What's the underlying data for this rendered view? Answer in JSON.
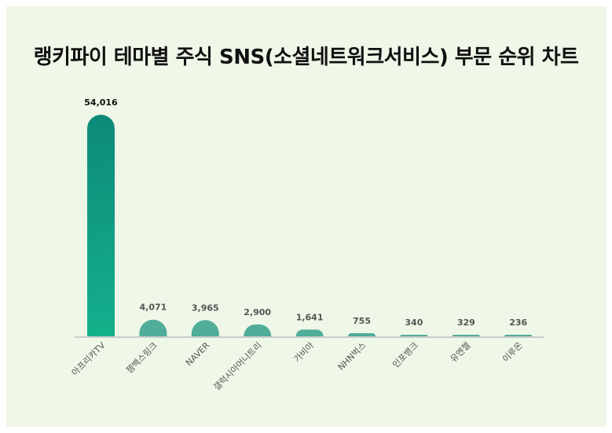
{
  "colors": {
    "background": "#eff7e8",
    "bar_top": "#0d8a78",
    "bar_bottom": "#15b08c",
    "bar_small": "#4fad99",
    "baseline": "#cccccc"
  },
  "chart_data": {
    "type": "bar",
    "title": "랭키파이 테마별 주식 SNS(소셜네트워크서비스) 부문 순위 차트",
    "xlabel": "",
    "ylabel": "",
    "ylim": [
      0,
      54016
    ],
    "grid": false,
    "legend": "none",
    "categories": [
      "아프리카TV",
      "젬백스링크",
      "NAVER",
      "갤럭시아머니트리",
      "가비아",
      "NHN벅스",
      "인포뱅크",
      "유엔젤",
      "이루온"
    ],
    "values": [
      54016,
      4071,
      3965,
      2900,
      1641,
      755,
      340,
      329,
      236
    ],
    "value_labels": [
      "54,016",
      "4,071",
      "3,965",
      "2,900",
      "1,641",
      "755",
      "340",
      "329",
      "236"
    ]
  }
}
